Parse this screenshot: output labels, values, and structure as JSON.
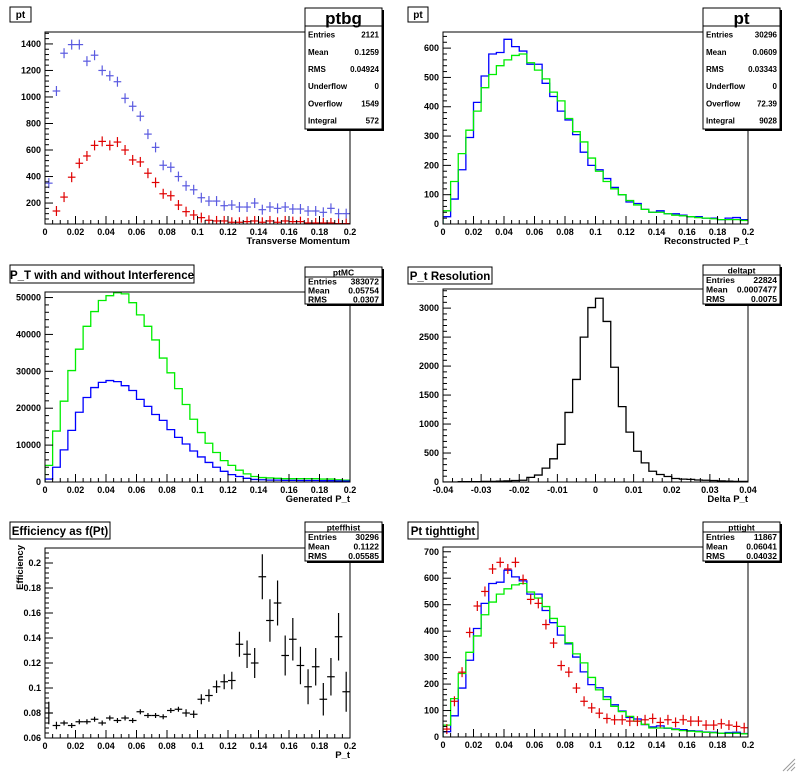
{
  "chart_data": [
    {
      "type": "scatter",
      "title": "pt",
      "xlabel": "Transverse Momentum",
      "ylabel": "",
      "xlim": [
        0,
        0.2
      ],
      "ylim": [
        42,
        1490
      ],
      "xticks": [
        0,
        0.02,
        0.04,
        0.06,
        0.08,
        0.1,
        0.12,
        0.14,
        0.16,
        0.18,
        0.2
      ],
      "yticks": [
        200,
        400,
        600,
        800,
        1000,
        1200,
        1400
      ],
      "bins": {
        "start": 0,
        "width": 0.005
      },
      "series": [
        {
          "style": "points",
          "color": "#5a5ae0",
          "values": [
            350,
            1045,
            1330,
            1395,
            1395,
            1270,
            1315,
            1200,
            1160,
            1115,
            990,
            930,
            855,
            720,
            620,
            485,
            470,
            400,
            330,
            300,
            240,
            215,
            215,
            180,
            185,
            170,
            170,
            200,
            150,
            170,
            160,
            170,
            155,
            155,
            140,
            140,
            130,
            160,
            120,
            120
          ]
        },
        {
          "style": "points",
          "color": "#e00000",
          "values": [
            null,
            140,
            245,
            395,
            500,
            555,
            635,
            665,
            635,
            660,
            600,
            525,
            510,
            425,
            355,
            270,
            255,
            185,
            135,
            110,
            90,
            70,
            65,
            65,
            55,
            55,
            60,
            65,
            55,
            65,
            55,
            65,
            60,
            60,
            50,
            50,
            50,
            50,
            45,
            45
          ]
        }
      ],
      "stats": {
        "name": "ptbg",
        "rows": [
          {
            "label": "Entries",
            "value": "2121"
          },
          {
            "label": "Mean",
            "value": "0.1259"
          },
          {
            "label": "RMS",
            "value": "0.04924"
          },
          {
            "label": "Underflow",
            "value": "0"
          },
          {
            "label": "Overflow",
            "value": "1549"
          },
          {
            "label": "Integral",
            "value": "572"
          }
        ]
      }
    },
    {
      "type": "bar",
      "title": "pt",
      "xlabel": "Reconstructed P_t",
      "ylabel": "",
      "xlim": [
        0,
        0.2
      ],
      "ylim": [
        0,
        655
      ],
      "xticks": [
        0,
        0.02,
        0.04,
        0.06,
        0.08,
        0.1,
        0.12,
        0.14,
        0.16,
        0.18,
        0.2
      ],
      "yticks": [
        0,
        100,
        200,
        300,
        400,
        500,
        600
      ],
      "bins": {
        "start": 0,
        "width": 0.005
      },
      "series": [
        {
          "style": "hist",
          "color": "#0000ff",
          "values": [
            25,
            85,
            185,
            295,
            415,
            505,
            580,
            585,
            630,
            605,
            590,
            545,
            545,
            480,
            435,
            385,
            355,
            305,
            245,
            200,
            185,
            155,
            125,
            100,
            75,
            70,
            50,
            40,
            45,
            35,
            35,
            30,
            25,
            25,
            20,
            20,
            15,
            20,
            22,
            15
          ]
        },
        {
          "style": "hist",
          "color": "#00ee00",
          "values": [
            45,
            145,
            240,
            320,
            385,
            465,
            510,
            540,
            560,
            575,
            580,
            550,
            525,
            495,
            450,
            420,
            360,
            315,
            280,
            225,
            180,
            145,
            120,
            100,
            80,
            65,
            50,
            40,
            40,
            35,
            30,
            28,
            25,
            22,
            20,
            18,
            15,
            15,
            15,
            12
          ]
        }
      ],
      "stats": {
        "name": "pt",
        "rows": [
          {
            "label": "Entries",
            "value": "30296"
          },
          {
            "label": "Mean",
            "value": "0.0609"
          },
          {
            "label": "RMS",
            "value": "0.03343"
          },
          {
            "label": "Underflow",
            "value": "0"
          },
          {
            "label": "Overflow",
            "value": "72.39"
          },
          {
            "label": "Integral",
            "value": "9028"
          }
        ]
      }
    },
    {
      "type": "bar",
      "title": "P_T with and without Interference",
      "xlabel": "Generated P_t",
      "ylabel": "",
      "xlim": [
        0,
        0.2
      ],
      "ylim": [
        0,
        51500
      ],
      "xticks": [
        0,
        0.02,
        0.04,
        0.06,
        0.08,
        0.1,
        0.12,
        0.14,
        0.16,
        0.18,
        0.2
      ],
      "yticks": [
        0,
        10000,
        20000,
        30000,
        40000,
        50000
      ],
      "bins": {
        "start": 0,
        "width": 0.005
      },
      "series": [
        {
          "style": "hist",
          "color": "#00ee00",
          "values": [
            4500,
            13800,
            21900,
            30200,
            36000,
            42200,
            46200,
            49200,
            50500,
            51300,
            51000,
            48600,
            45300,
            42200,
            38500,
            33600,
            29600,
            25300,
            21000,
            17000,
            13400,
            10500,
            8000,
            5800,
            4500,
            3200,
            2200,
            1500,
            1200,
            1100,
            1000,
            900,
            900,
            900,
            900,
            900,
            800,
            800,
            600,
            500
          ]
        },
        {
          "style": "hist",
          "color": "#0000ff",
          "values": [
            800,
            4000,
            8700,
            14000,
            18900,
            22900,
            25600,
            27000,
            27500,
            27200,
            26100,
            24800,
            22400,
            20500,
            18300,
            16700,
            14200,
            12100,
            10300,
            8400,
            6800,
            5300,
            4000,
            2900,
            2000,
            1500,
            1000,
            700,
            600,
            500,
            500,
            450,
            450,
            400,
            400,
            400,
            350,
            350,
            300,
            250
          ]
        }
      ],
      "stats": {
        "name": "ptMC",
        "rows": [
          {
            "label": "Entries",
            "value": "383072"
          },
          {
            "label": "Mean",
            "value": "0.05754"
          },
          {
            "label": "RMS",
            "value": "0.0307"
          }
        ]
      }
    },
    {
      "type": "bar",
      "title": "P_t Resolution",
      "xlabel": "Delta P_t",
      "ylabel": "",
      "xlim": [
        -0.04,
        0.04
      ],
      "ylim": [
        0,
        3330
      ],
      "xticks": [
        -0.04,
        -0.03,
        -0.02,
        -0.01,
        0,
        0.01,
        0.02,
        0.03,
        0.04
      ],
      "yticks": [
        0,
        500,
        1000,
        1500,
        2000,
        2500,
        3000
      ],
      "bins": {
        "start": -0.04,
        "width": 0.002
      },
      "series": [
        {
          "style": "hist",
          "color": "#000000",
          "values": [
            0,
            0,
            5,
            5,
            5,
            10,
            10,
            15,
            20,
            25,
            30,
            80,
            120,
            240,
            400,
            650,
            1200,
            1770,
            2500,
            3010,
            3170,
            2770,
            1980,
            1300,
            860,
            530,
            330,
            185,
            130,
            95,
            60,
            50,
            45,
            35,
            30,
            25,
            20,
            15,
            10,
            10
          ]
        }
      ],
      "stats": {
        "name": "deltapt",
        "rows": [
          {
            "label": "Entries",
            "value": "22824"
          },
          {
            "label": "Mean",
            "value": "0.0007477"
          },
          {
            "label": "RMS",
            "value": "0.0075"
          }
        ]
      }
    },
    {
      "type": "scatter",
      "title": "Efficiency as f(Pt)",
      "xlabel": "P_t",
      "ylabel": "Efficiency",
      "xlim": [
        0,
        0.2
      ],
      "ylim": [
        0.06,
        0.212
      ],
      "xticks": [
        0,
        0.02,
        0.04,
        0.06,
        0.08,
        0.1,
        0.12,
        0.14,
        0.16,
        0.18,
        0.2
      ],
      "yticks": [
        0.06,
        0.08,
        0.1,
        0.12,
        0.14,
        0.16,
        0.18,
        0.2
      ],
      "bins": {
        "start": 0,
        "width": 0.005
      },
      "series": [
        {
          "style": "points",
          "color": "#000000",
          "values": [
            0.08,
            0.07,
            0.072,
            0.07,
            0.073,
            0.073,
            0.075,
            0.072,
            0.076,
            0.074,
            0.076,
            0.074,
            0.081,
            0.078,
            0.078,
            0.077,
            0.082,
            0.083,
            0.08,
            0.079,
            0.091,
            0.094,
            0.101,
            0.105,
            0.106,
            0.135,
            0.127,
            0.12,
            0.189,
            0.154,
            0.168,
            0.126,
            0.139,
            0.118,
            0.101,
            0.117,
            0.091,
            0.109,
            0.141,
            0.097
          ],
          "errors": [
            0.009,
            0.003,
            0.002,
            0.002,
            0.002,
            0.002,
            0.002,
            0.002,
            0.002,
            0.002,
            0.002,
            0.002,
            0.002,
            0.002,
            0.002,
            0.002,
            0.002,
            0.002,
            0.003,
            0.003,
            0.004,
            0.005,
            0.005,
            0.006,
            0.007,
            0.01,
            0.011,
            0.012,
            0.018,
            0.017,
            0.018,
            0.016,
            0.017,
            0.015,
            0.014,
            0.015,
            0.013,
            0.015,
            0.019,
            0.016
          ]
        }
      ],
      "stats": {
        "name": "pteffhist",
        "rows": [
          {
            "label": "Entries",
            "value": "30296"
          },
          {
            "label": "Mean",
            "value": "0.1122"
          },
          {
            "label": "RMS",
            "value": "0.05585"
          }
        ]
      }
    },
    {
      "type": "bar",
      "title": "Pt tighttight",
      "xlabel": "",
      "ylabel": "",
      "xlim": [
        0,
        0.2
      ],
      "ylim": [
        0,
        718
      ],
      "xticks": [
        0,
        0.02,
        0.04,
        0.06,
        0.08,
        0.1,
        0.12,
        0.14,
        0.16,
        0.18,
        0.2
      ],
      "yticks": [
        0,
        100,
        200,
        300,
        400,
        500,
        600,
        700
      ],
      "bins": {
        "start": 0,
        "width": 0.005
      },
      "series": [
        {
          "style": "hist",
          "color": "#0000ff",
          "values": [
            20,
            80,
            185,
            290,
            410,
            505,
            580,
            585,
            630,
            605,
            590,
            540,
            540,
            478,
            432,
            385,
            352,
            302,
            246,
            198,
            186,
            152,
            122,
            98,
            74,
            68,
            47,
            38,
            42,
            33,
            30,
            28,
            24,
            22,
            19,
            18,
            14,
            17,
            18,
            13
          ]
        },
        {
          "style": "hist",
          "color": "#00ee00",
          "values": [
            45,
            145,
            240,
            320,
            382,
            462,
            510,
            540,
            560,
            575,
            580,
            548,
            525,
            493,
            448,
            418,
            356,
            314,
            280,
            225,
            178,
            142,
            116,
            96,
            78,
            60,
            48,
            34,
            34,
            34,
            28,
            24,
            22,
            20,
            18,
            16,
            14,
            14,
            14,
            12
          ]
        },
        {
          "style": "points",
          "color": "#e00000",
          "values": [
            30,
            135,
            245,
            395,
            495,
            550,
            635,
            660,
            635,
            660,
            595,
            520,
            505,
            425,
            355,
            270,
            245,
            185,
            135,
            110,
            90,
            70,
            65,
            65,
            60,
            60,
            65,
            70,
            55,
            65,
            55,
            65,
            60,
            60,
            45,
            45,
            50,
            45,
            40,
            35
          ]
        }
      ],
      "stats": {
        "name": "pttight",
        "rows": [
          {
            "label": "Entries",
            "value": "11867"
          },
          {
            "label": "Mean",
            "value": "0.06041"
          },
          {
            "label": "RMS",
            "value": "0.04032"
          }
        ]
      }
    }
  ],
  "canvas": {
    "resize_handle_icon": "resize-grip-icon"
  }
}
